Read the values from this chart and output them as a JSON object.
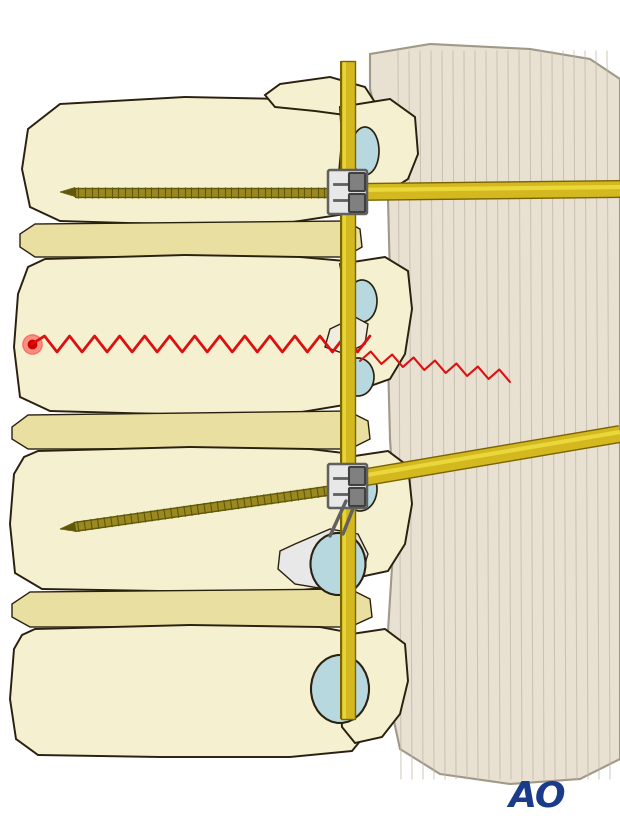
{
  "background_color": "#ffffff",
  "ao_text": "AO",
  "ao_color": "#1a3a8a",
  "ao_fontsize": 26,
  "figure_size": [
    6.2,
    8.37
  ],
  "dpi": 100,
  "bone_fill": "#f5f0d0",
  "bone_outline": "#2a2010",
  "bone_shadow": "#e0d890",
  "bone_light": "#fdfaee",
  "cartilage_color": "#b8d8e0",
  "disc_color": "#e8dfa0",
  "screw_color": "#9a8820",
  "screw_dark": "#605808",
  "rod_color": "#d4b820",
  "rod_highlight": "#f0e040",
  "rod_dark": "#7a6400",
  "clamp_fill": "#e8e8e8",
  "clamp_dark": "#606060",
  "clamp_light": "#ffffff",
  "fracture_color": "#dd1010",
  "muscle_fill": "#e8e0d0",
  "muscle_line": "#c0b8a8",
  "muscle_outline": "#a09888"
}
